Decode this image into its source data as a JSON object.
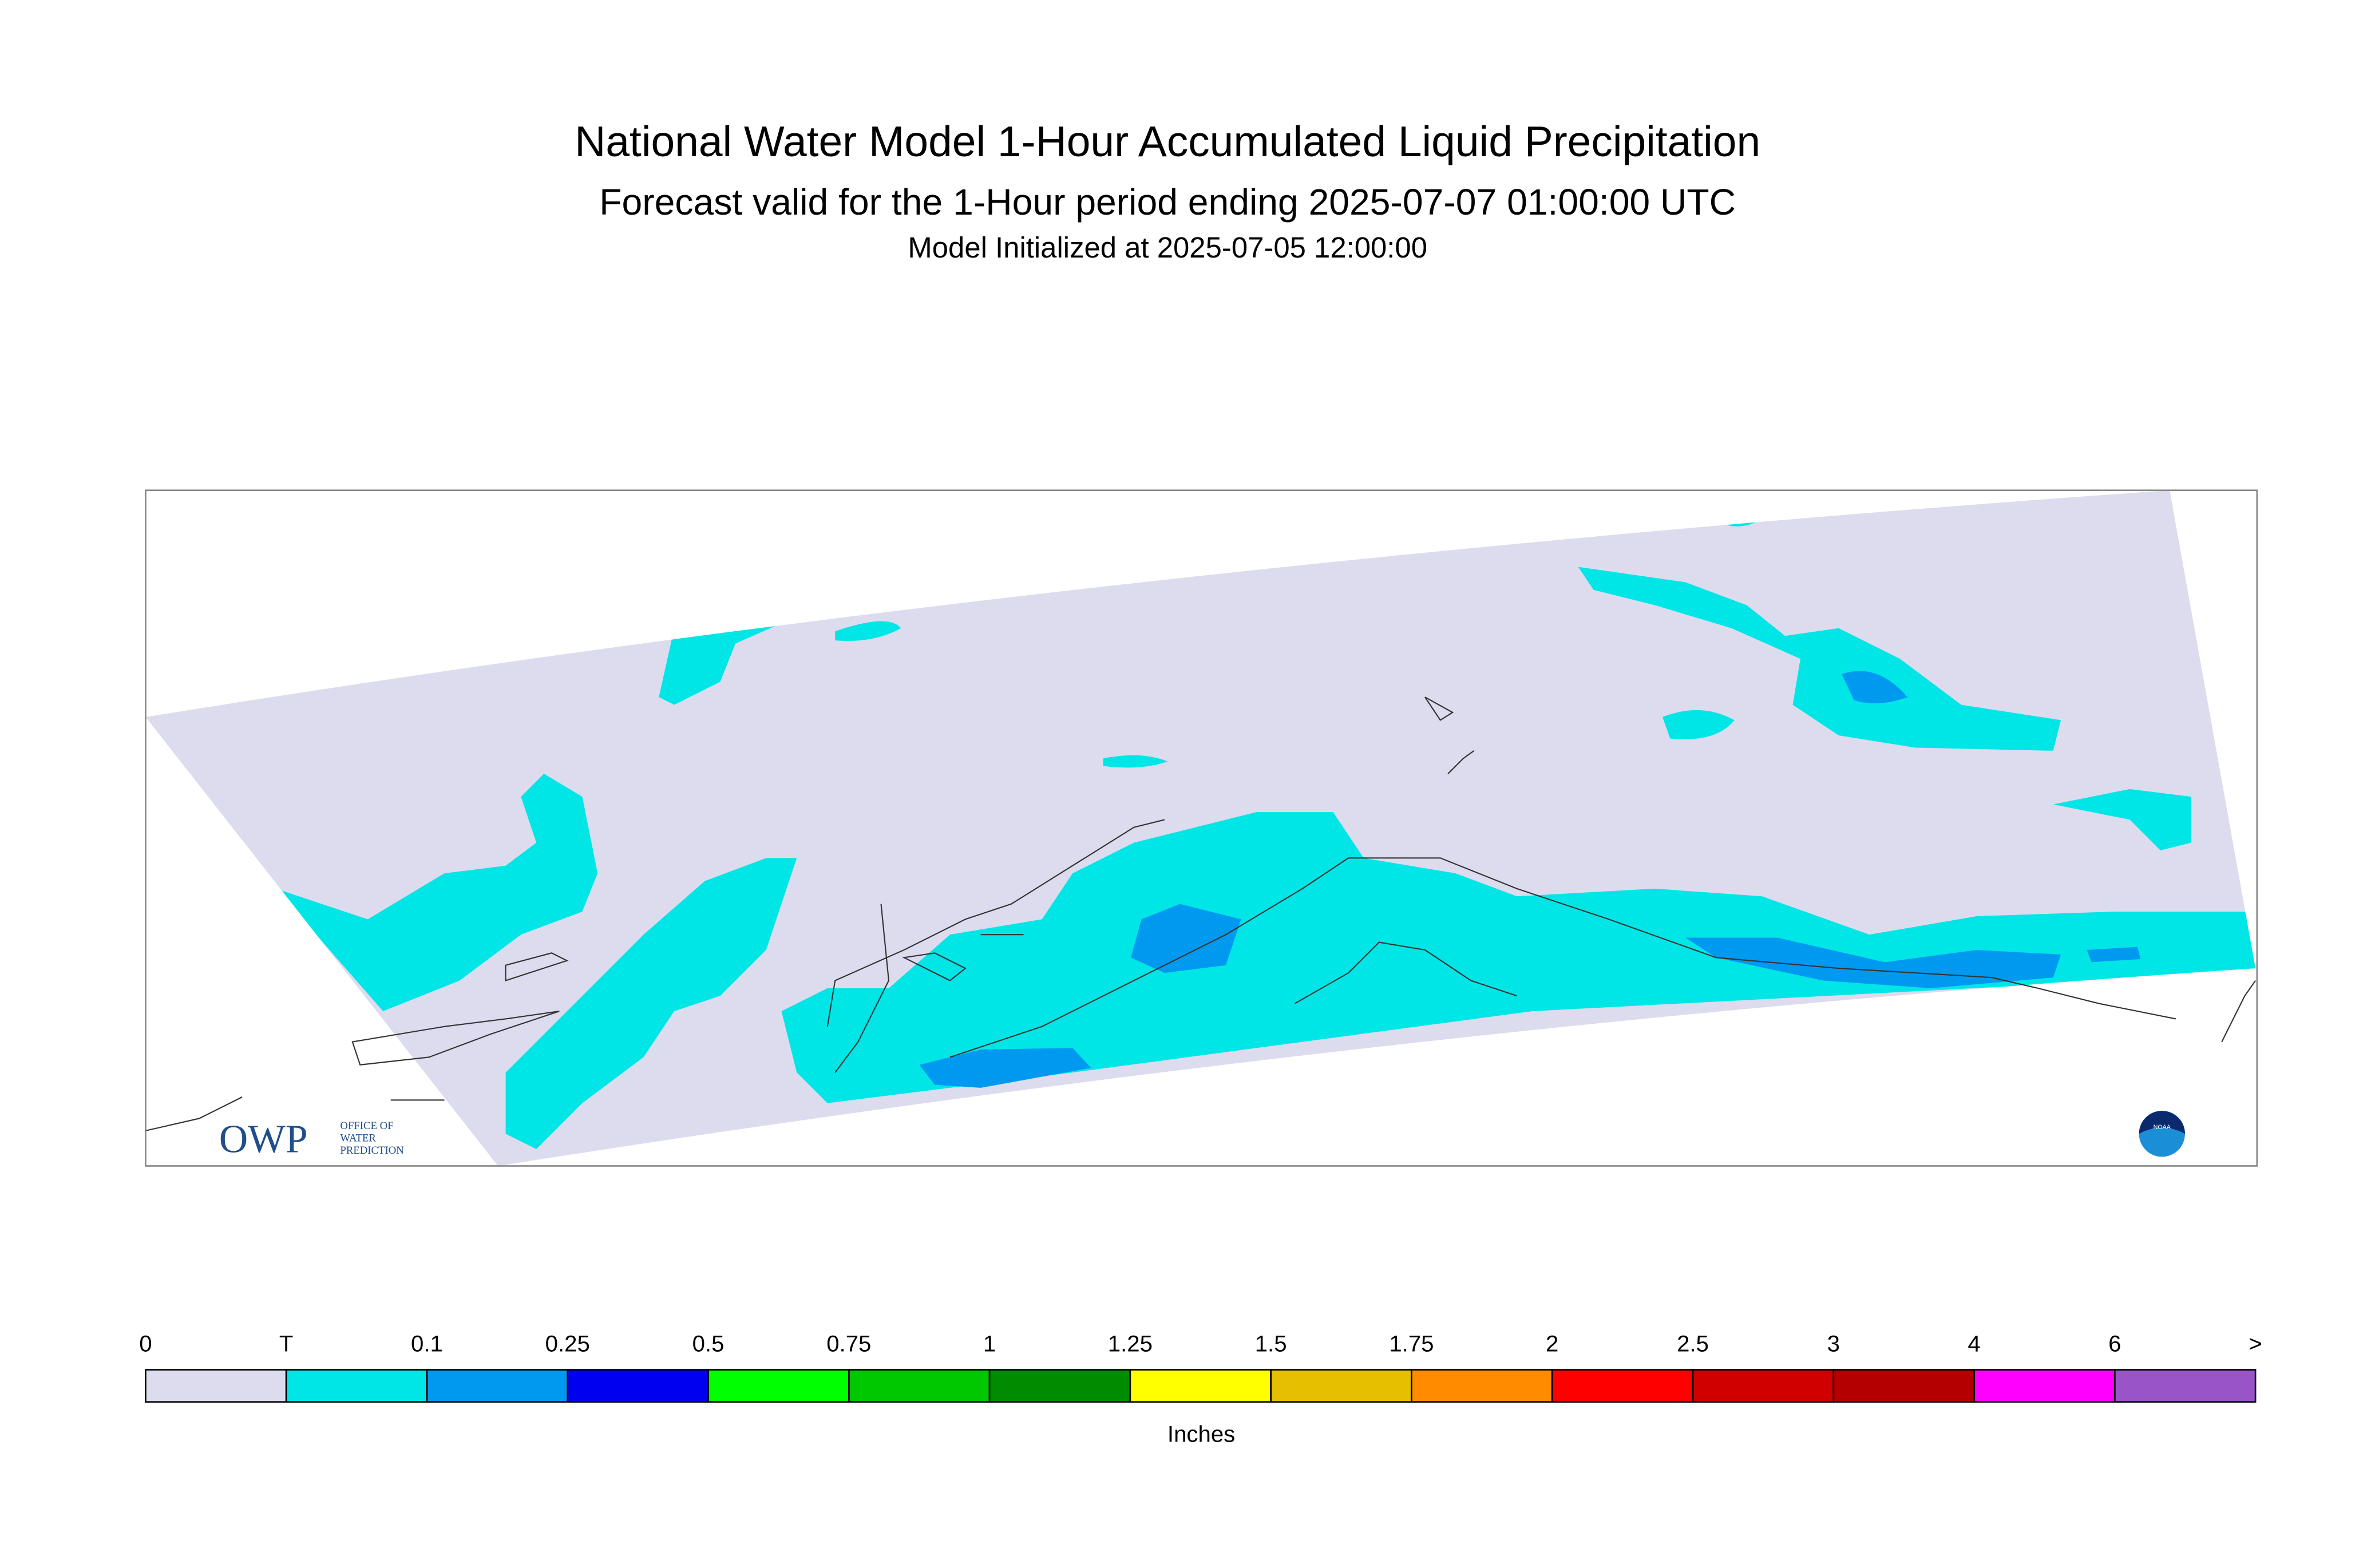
{
  "header": {
    "title": "National Water Model 1-Hour Accumulated Liquid Precipitation",
    "subtitle": "Forecast valid for the 1-Hour period ending 2025-07-07 01:00:00 UTC",
    "initialized": "Model Initialized at 2025-07-05 12:00:00"
  },
  "logos": {
    "owp": "OWP",
    "owp_text": [
      "OFFICE OF",
      "WATER",
      "PREDICTION"
    ],
    "noaa": "NOAA"
  },
  "legend": {
    "labels": [
      "0",
      "T",
      "0.1",
      "0.25",
      "0.5",
      "0.75",
      "1",
      "1.25",
      "1.5",
      "1.75",
      "2",
      "2.5",
      "3",
      "4",
      "6",
      ">"
    ],
    "colors": [
      "#dcdcee",
      "#00e6e6",
      "#0099f0",
      "#0000f0",
      "#00ff00",
      "#00c800",
      "#008c00",
      "#ffff00",
      "#e6c000",
      "#ff8c00",
      "#ff0000",
      "#d00000",
      "#b40000",
      "#ff00ff",
      "#9955c8"
    ],
    "unit": "Inches"
  }
}
